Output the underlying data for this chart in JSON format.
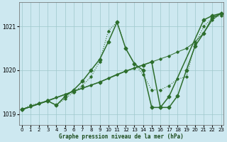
{
  "bg_color": "#cde8f0",
  "grid_color": "#9ec8cc",
  "line_color": "#2d6e2d",
  "title": "Graphe pression niveau de la mer (hPa)",
  "ylim": [
    1018.75,
    1021.55
  ],
  "yticks": [
    1019,
    1020,
    1021
  ],
  "xlim": [
    -0.3,
    23.3
  ],
  "xticks": [
    0,
    1,
    2,
    3,
    4,
    5,
    6,
    7,
    8,
    9,
    10,
    11,
    12,
    13,
    14,
    15,
    16,
    17,
    18,
    19,
    20,
    21,
    22,
    23
  ],
  "series": [
    {
      "style": "dotted",
      "x": [
        0,
        1,
        2,
        3,
        4,
        5,
        6,
        7,
        8,
        9,
        10,
        11,
        12,
        13,
        14,
        15,
        16,
        17,
        18,
        19,
        20,
        21,
        22,
        23
      ],
      "y": [
        1019.1,
        1019.2,
        1019.25,
        1019.3,
        1019.2,
        1019.35,
        1019.5,
        1019.65,
        1019.85,
        1020.2,
        1020.9,
        1021.1,
        1020.5,
        1020.15,
        1019.9,
        1019.55,
        1019.55,
        1019.65,
        1019.8,
        1019.85,
        1020.6,
        1021.0,
        1021.2,
        1021.25
      ]
    },
    {
      "style": "thin",
      "x": [
        0,
        1,
        2,
        3,
        4,
        5,
        6,
        7,
        8,
        9,
        10,
        11,
        12,
        13,
        14,
        15,
        16,
        17,
        18,
        19,
        20,
        21,
        22,
        23
      ],
      "y": [
        1019.1,
        1019.17,
        1019.24,
        1019.31,
        1019.38,
        1019.45,
        1019.52,
        1019.59,
        1019.66,
        1019.73,
        1019.82,
        1019.91,
        1019.98,
        1020.05,
        1020.12,
        1020.19,
        1020.26,
        1020.33,
        1020.42,
        1020.5,
        1020.65,
        1020.85,
        1021.15,
        1021.3
      ]
    },
    {
      "style": "thick",
      "x": [
        0,
        3,
        4,
        5,
        6,
        7,
        8,
        9,
        10,
        11,
        12,
        13,
        14,
        15,
        16,
        17,
        21,
        22,
        23
      ],
      "y": [
        1019.1,
        1019.3,
        1019.2,
        1019.4,
        1019.55,
        1019.75,
        1020.0,
        1020.25,
        1020.65,
        1021.1,
        1020.5,
        1020.15,
        1020.0,
        1019.15,
        1019.15,
        1019.4,
        1021.15,
        1021.25,
        1021.3
      ]
    },
    {
      "style": "thick",
      "x": [
        0,
        3,
        6,
        9,
        12,
        14,
        15,
        16,
        17,
        18,
        19,
        20,
        21,
        22,
        23
      ],
      "y": [
        1019.1,
        1019.3,
        1019.52,
        1019.73,
        1019.98,
        1020.12,
        1020.19,
        1019.15,
        1019.15,
        1019.42,
        1020.0,
        1020.55,
        1020.85,
        1021.2,
        1021.3
      ]
    }
  ]
}
